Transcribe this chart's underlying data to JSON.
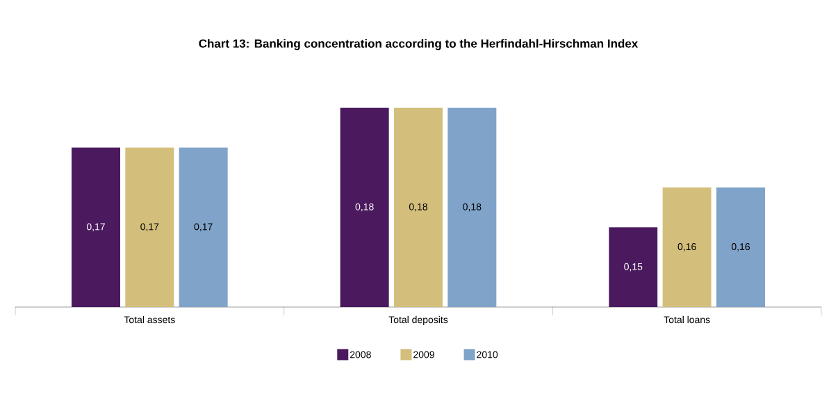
{
  "chart_data": {
    "type": "bar",
    "title": "Chart 13:  Banking concentration according to the Herfindahl-Hirschman Index",
    "categories": [
      "Total assets",
      "Total deposits",
      "Total loans"
    ],
    "series": [
      {
        "name": "2008",
        "color": "#4b1a5e",
        "values": [
          0.17,
          0.18,
          0.15
        ],
        "value_labels": [
          "0,17",
          "0,18",
          "0,15"
        ]
      },
      {
        "name": "2009",
        "color": "#d3bf7b",
        "values": [
          0.17,
          0.18,
          0.16
        ],
        "value_labels": [
          "0,17",
          "0,18",
          "0,16"
        ]
      },
      {
        "name": "2010",
        "color": "#80a3c9",
        "values": [
          0.17,
          0.18,
          0.16
        ],
        "value_labels": [
          "0,17",
          "0,18",
          "0,16"
        ]
      }
    ],
    "ylim": [
      0.13,
      0.18
    ],
    "legend": "bottom"
  }
}
